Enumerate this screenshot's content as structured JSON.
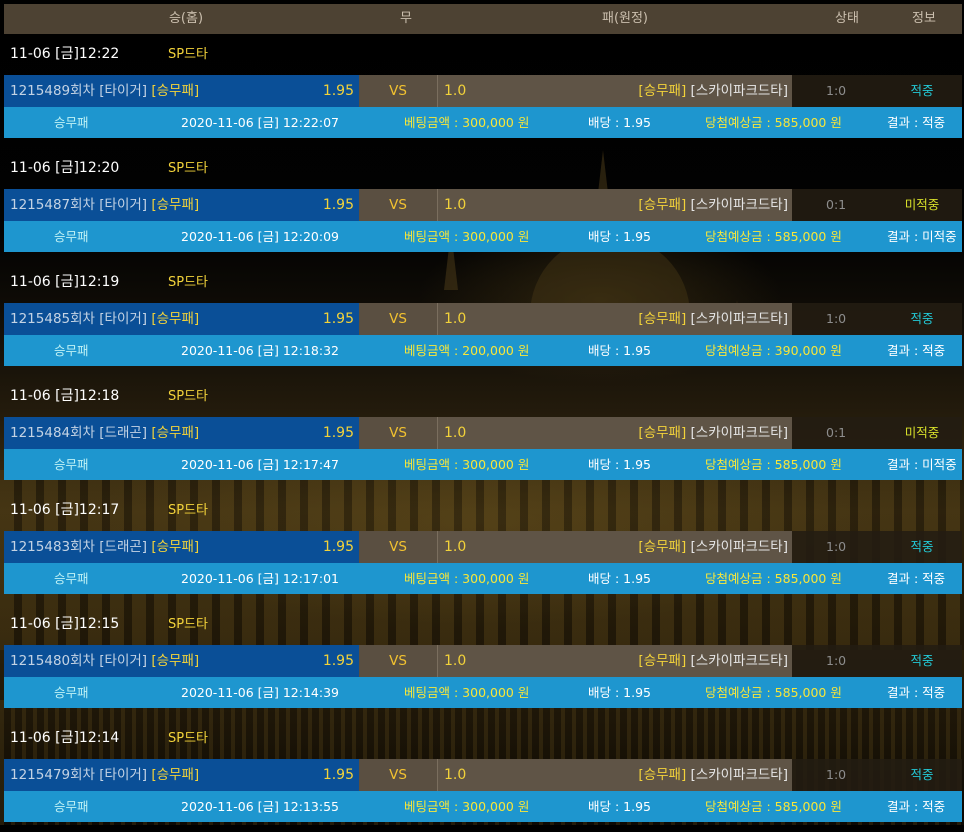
{
  "header": {
    "col_home": "승(홈)",
    "col_draw": "무",
    "col_away": "패(원정)",
    "col_status": "상태",
    "col_info": "정보"
  },
  "bets": [
    {
      "date": "11-06 [금]12:22",
      "game": "SP드타",
      "round": "1215489회차 [타이거]",
      "home_tag": "[승무패]",
      "home_odd": "1.95",
      "vs": "VS",
      "away_odd": "1.0",
      "away_tag": "[승무패]",
      "away_name": "[스카이파크드타]",
      "score": "1:0",
      "result_status": "적중",
      "hit": true,
      "bet_type": "승무패",
      "bet_time": "2020-11-06 [금] 12:22:07",
      "bet_amount": "베팅금액 : 300,000 원",
      "odds": "배당 : 1.95",
      "expected_win": "당첨예상금 : 585,000 원",
      "result_text": "결과 : 적중"
    },
    {
      "date": "11-06 [금]12:20",
      "game": "SP드타",
      "round": "1215487회차 [타이거]",
      "home_tag": "[승무패]",
      "home_odd": "1.95",
      "vs": "VS",
      "away_odd": "1.0",
      "away_tag": "[승무패]",
      "away_name": "[스카이파크드타]",
      "score": "0:1",
      "result_status": "미적중",
      "hit": false,
      "bet_type": "승무패",
      "bet_time": "2020-11-06 [금] 12:20:09",
      "bet_amount": "베팅금액 : 300,000 원",
      "odds": "배당 : 1.95",
      "expected_win": "당첨예상금 : 585,000 원",
      "result_text": "결과 : 미적중"
    },
    {
      "date": "11-06 [금]12:19",
      "game": "SP드타",
      "round": "1215485회차 [타이거]",
      "home_tag": "[승무패]",
      "home_odd": "1.95",
      "vs": "VS",
      "away_odd": "1.0",
      "away_tag": "[승무패]",
      "away_name": "[스카이파크드타]",
      "score": "1:0",
      "result_status": "적중",
      "hit": true,
      "bet_type": "승무패",
      "bet_time": "2020-11-06 [금] 12:18:32",
      "bet_amount": "베팅금액 : 200,000 원",
      "odds": "배당 : 1.95",
      "expected_win": "당첨예상금 : 390,000 원",
      "result_text": "결과 : 적중"
    },
    {
      "date": "11-06 [금]12:18",
      "game": "SP드타",
      "round": "1215484회차 [드래곤]",
      "home_tag": "[승무패]",
      "home_odd": "1.95",
      "vs": "VS",
      "away_odd": "1.0",
      "away_tag": "[승무패]",
      "away_name": "[스카이파크드타]",
      "score": "0:1",
      "result_status": "미적중",
      "hit": false,
      "bet_type": "승무패",
      "bet_time": "2020-11-06 [금] 12:17:47",
      "bet_amount": "베팅금액 : 300,000 원",
      "odds": "배당 : 1.95",
      "expected_win": "당첨예상금 : 585,000 원",
      "result_text": "결과 : 미적중"
    },
    {
      "date": "11-06 [금]12:17",
      "game": "SP드타",
      "round": "1215483회차 [드래곤]",
      "home_tag": "[승무패]",
      "home_odd": "1.95",
      "vs": "VS",
      "away_odd": "1.0",
      "away_tag": "[승무패]",
      "away_name": "[스카이파크드타]",
      "score": "1:0",
      "result_status": "적중",
      "hit": true,
      "bet_type": "승무패",
      "bet_time": "2020-11-06 [금] 12:17:01",
      "bet_amount": "베팅금액 : 300,000 원",
      "odds": "배당 : 1.95",
      "expected_win": "당첨예상금 : 585,000 원",
      "result_text": "결과 : 적중"
    },
    {
      "date": "11-06 [금]12:15",
      "game": "SP드타",
      "round": "1215480회차 [타이거]",
      "home_tag": "[승무패]",
      "home_odd": "1.95",
      "vs": "VS",
      "away_odd": "1.0",
      "away_tag": "[승무패]",
      "away_name": "[스카이파크드타]",
      "score": "1:0",
      "result_status": "적중",
      "hit": true,
      "bet_type": "승무패",
      "bet_time": "2020-11-06 [금] 12:14:39",
      "bet_amount": "베팅금액 : 300,000 원",
      "odds": "배당 : 1.95",
      "expected_win": "당첨예상금 : 585,000 원",
      "result_text": "결과 : 적중"
    },
    {
      "date": "11-06 [금]12:14",
      "game": "SP드타",
      "round": "1215479회차 [타이거]",
      "home_tag": "[승무패]",
      "home_odd": "1.95",
      "vs": "VS",
      "away_odd": "1.0",
      "away_tag": "[승무패]",
      "away_name": "[스카이파크드타]",
      "score": "1:0",
      "result_status": "적중",
      "hit": true,
      "bet_type": "승무패",
      "bet_time": "2020-11-06 [금] 12:13:55",
      "bet_amount": "베팅금액 : 300,000 원",
      "odds": "배당 : 1.95",
      "expected_win": "당첨예상금 : 585,000 원",
      "result_text": "결과 : 적중"
    }
  ]
}
